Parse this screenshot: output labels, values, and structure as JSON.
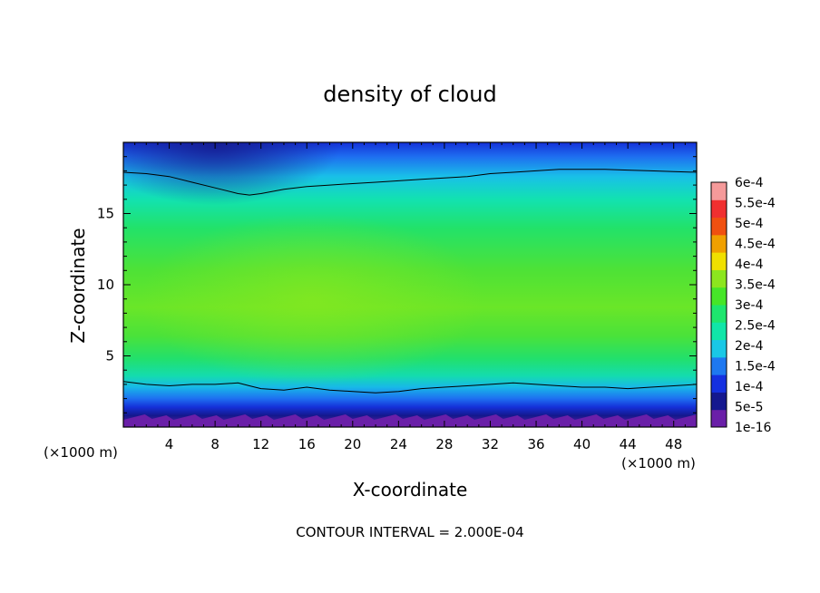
{
  "chart_data": {
    "type": "heatmap",
    "title": "density of cloud",
    "xlabel": "X-coordinate",
    "ylabel": "Z-coordinate",
    "x_unit_left": "(×1000 m)",
    "x_unit_right": "(×1000 m)",
    "xlim": [
      0,
      50
    ],
    "ylim": [
      0,
      20
    ],
    "x_ticks": [
      4,
      8,
      12,
      16,
      20,
      24,
      28,
      32,
      36,
      40,
      44,
      48
    ],
    "y_ticks": [
      5,
      10,
      15
    ],
    "footer": "CONTOUR INTERVAL = 2.000E-04",
    "colorbar": {
      "labels": [
        "1e-16",
        "5e-5",
        "1e-4",
        "1.5e-4",
        "2e-4",
        "2.5e-4",
        "3e-4",
        "3.5e-4",
        "4e-4",
        "4.5e-4",
        "5e-4",
        "5.5e-4",
        "6e-4"
      ],
      "colors": [
        "#6a1fa8",
        "#15188f",
        "#1530e0",
        "#1e78f0",
        "#19c8e6",
        "#10e6a8",
        "#1ee66e",
        "#46e628",
        "#8ce61e",
        "#f0e000",
        "#f0a000",
        "#f05010",
        "#f03030",
        "#f59a9a"
      ]
    },
    "contour_lines_z": {
      "x": [
        0,
        2,
        4,
        6,
        8,
        10,
        11,
        12,
        14,
        16,
        18,
        20,
        22,
        24,
        26,
        28,
        30,
        32,
        34,
        36,
        38,
        40,
        42,
        44,
        46,
        48,
        50
      ],
      "upper_2e-4": [
        17.9,
        17.8,
        17.6,
        17.2,
        16.8,
        16.4,
        16.3,
        16.4,
        16.7,
        16.9,
        17.0,
        17.1,
        17.2,
        17.3,
        17.4,
        17.5,
        17.6,
        17.8,
        17.9,
        18.0,
        18.1,
        18.1,
        18.1,
        18.05,
        18.0,
        17.95,
        17.9
      ],
      "lower_2e-4": [
        3.2,
        3.0,
        2.9,
        3.0,
        3.0,
        3.1,
        2.9,
        2.7,
        2.6,
        2.8,
        2.6,
        2.5,
        2.4,
        2.5,
        2.7,
        2.8,
        2.9,
        3.0,
        3.1,
        3.0,
        2.9,
        2.8,
        2.8,
        2.7,
        2.8,
        2.9,
        3.0
      ]
    }
  }
}
